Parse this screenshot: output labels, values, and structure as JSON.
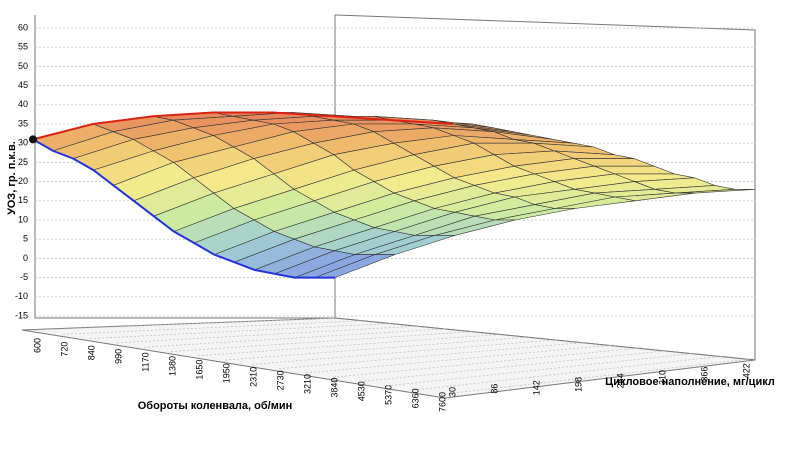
{
  "chart_data": {
    "type": "surface",
    "x_label": "Обороты коленвала, об/мин",
    "y_label": "Цикловое наполнение, мг/цикл",
    "z_label": "УОЗ, гр. п.к.в.",
    "x": [
      600,
      720,
      840,
      990,
      1170,
      1380,
      1650,
      1950,
      2310,
      2730,
      3210,
      3840,
      4530,
      5370,
      6360,
      7600
    ],
    "y": [
      30,
      86,
      142,
      198,
      254,
      310,
      366,
      422
    ],
    "values": [
      [
        31,
        28,
        26,
        23,
        19,
        15,
        11,
        7,
        4,
        1,
        -1,
        -3,
        -4,
        -5,
        -5,
        -5
      ],
      [
        35,
        33,
        31,
        28,
        25,
        21,
        17,
        13,
        10,
        7,
        5,
        3,
        2,
        1,
        1,
        1
      ],
      [
        37,
        36,
        34,
        32,
        29,
        26,
        22,
        18,
        15,
        12,
        10,
        8,
        7,
        6,
        6,
        6
      ],
      [
        38,
        37,
        36,
        35,
        33,
        30,
        27,
        23,
        20,
        17,
        15,
        13,
        12,
        11,
        10,
        10
      ],
      [
        38,
        38,
        37,
        36,
        35,
        33,
        30,
        27,
        24,
        21,
        19,
        17,
        16,
        14,
        13,
        13
      ],
      [
        37,
        37,
        37,
        36,
        35,
        34,
        32,
        30,
        27,
        24,
        22,
        20,
        18,
        17,
        16,
        15
      ],
      [
        36,
        36,
        36,
        35,
        34,
        33,
        31,
        30,
        28,
        26,
        24,
        22,
        20,
        18,
        17,
        17
      ],
      [
        35,
        35,
        34,
        33,
        32,
        31,
        30,
        29,
        27,
        26,
        24,
        22,
        21,
        19,
        18,
        18
      ]
    ],
    "zlim": [
      -15,
      60
    ],
    "zticks": [
      60,
      55,
      50,
      45,
      40,
      35,
      30,
      25,
      20,
      15,
      10,
      5,
      0,
      -5,
      -10,
      -15
    ],
    "grid": true
  }
}
